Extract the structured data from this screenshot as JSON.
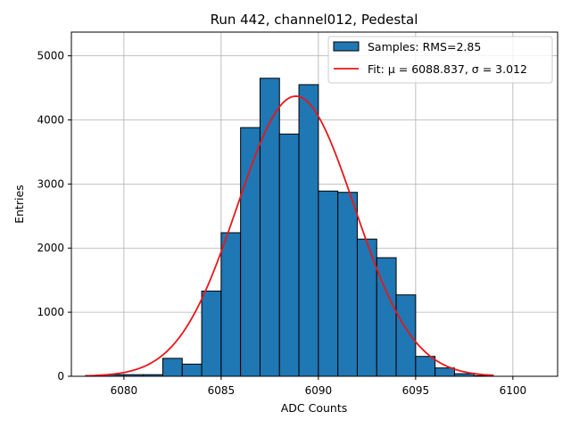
{
  "chart_data": {
    "type": "bar",
    "title": "Run 442, channel012, Pedestal",
    "xlabel": "ADC Counts",
    "ylabel": "Entries",
    "xlim": [
      6077.3,
      6102.3
    ],
    "ylim": [
      0,
      5370
    ],
    "xticks": [
      6080,
      6085,
      6090,
      6095,
      6100
    ],
    "yticks": [
      0,
      1000,
      2000,
      3000,
      4000,
      5000
    ],
    "grid": true,
    "legend_position": "top-right",
    "bin_width": 1,
    "bins": [
      {
        "x": 6079.5,
        "value": 25
      },
      {
        "x": 6080.5,
        "value": 25
      },
      {
        "x": 6081.5,
        "value": 25
      },
      {
        "x": 6082.5,
        "value": 280
      },
      {
        "x": 6083.5,
        "value": 190
      },
      {
        "x": 6084.5,
        "value": 1330
      },
      {
        "x": 6085.5,
        "value": 2240
      },
      {
        "x": 6086.5,
        "value": 3880
      },
      {
        "x": 6087.5,
        "value": 4650
      },
      {
        "x": 6088.5,
        "value": 3780
      },
      {
        "x": 6089.5,
        "value": 4550
      },
      {
        "x": 6090.5,
        "value": 2890
      },
      {
        "x": 6091.5,
        "value": 2870
      },
      {
        "x": 6092.5,
        "value": 2140
      },
      {
        "x": 6093.5,
        "value": 1850
      },
      {
        "x": 6094.5,
        "value": 1270
      },
      {
        "x": 6095.5,
        "value": 310
      },
      {
        "x": 6096.5,
        "value": 130
      },
      {
        "x": 6097.5,
        "value": 40
      },
      {
        "x": 6098.5,
        "value": 10
      }
    ],
    "fit": {
      "mu": 6088.837,
      "sigma": 3.012,
      "amplitude": 4370,
      "x_range": [
        6078,
        6099
      ]
    },
    "series": [
      {
        "name": "Samples: RMS=2.85",
        "color": "#1f77b4",
        "kind": "histogram"
      },
      {
        "name": "Fit: μ = 6088.837, σ = 3.012",
        "color": "#e8161a",
        "kind": "line"
      }
    ]
  }
}
